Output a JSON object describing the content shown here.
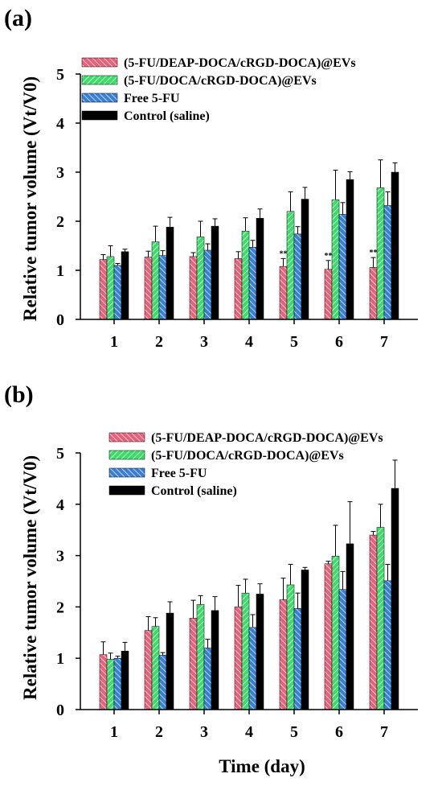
{
  "figure": {
    "xlabel": "Time (day)"
  },
  "colors": {
    "pink": "#e8607a",
    "green": "#3ddc6a",
    "blue": "#3a7fd6",
    "black": "#000000"
  },
  "chart_data": [
    {
      "panel_label": "(a)",
      "type": "bar",
      "categories": [
        "1",
        "2",
        "3",
        "4",
        "5",
        "6",
        "7"
      ],
      "ylabel": "Relative tumor volume (Vt/V0)",
      "ylim": [
        0,
        5
      ],
      "yticks": [
        "0",
        "1",
        "2",
        "3",
        "4",
        "5"
      ],
      "legend_position": "top-left",
      "series": [
        {
          "name": "(5-FU/DEAP-DOCA/cRGD-DOCA)@EVs",
          "values": [
            1.22,
            1.27,
            1.28,
            1.24,
            1.08,
            1.02,
            1.06
          ],
          "errors": [
            0.1,
            0.12,
            0.08,
            0.14,
            0.16,
            0.18,
            0.2
          ]
        },
        {
          "name": "(5-FU/DOCA/cRGD-DOCA)@EVs",
          "values": [
            1.28,
            1.58,
            1.68,
            1.8,
            2.2,
            2.44,
            2.68
          ],
          "errors": [
            0.22,
            0.32,
            0.32,
            0.27,
            0.4,
            0.6,
            0.57
          ]
        },
        {
          "name": "Free 5-FU",
          "values": [
            1.1,
            1.3,
            1.41,
            1.47,
            1.74,
            2.14,
            2.32
          ],
          "errors": [
            0.04,
            0.1,
            0.13,
            0.14,
            0.15,
            0.24,
            0.28
          ]
        },
        {
          "name": "Control (saline)",
          "values": [
            1.38,
            1.88,
            1.9,
            2.06,
            2.45,
            2.85,
            3.0
          ],
          "errors": [
            0.05,
            0.2,
            0.15,
            0.19,
            0.24,
            0.16,
            0.19
          ]
        }
      ],
      "annotations": [
        {
          "category": "5",
          "text": "**"
        },
        {
          "category": "6",
          "text": "**"
        },
        {
          "category": "7",
          "text": "**"
        }
      ]
    },
    {
      "panel_label": "(b)",
      "type": "bar",
      "categories": [
        "1",
        "2",
        "3",
        "4",
        "5",
        "6",
        "7"
      ],
      "ylabel": "Relative tumor volume (Vt/V0)",
      "ylim": [
        0,
        5
      ],
      "yticks": [
        "0",
        "1",
        "2",
        "3",
        "4",
        "5"
      ],
      "legend_position": "top-left",
      "series": [
        {
          "name": "(5-FU/DEAP-DOCA/cRGD-DOCA)@EVs",
          "values": [
            1.07,
            1.54,
            1.78,
            2.0,
            2.14,
            2.84,
            3.4
          ],
          "errors": [
            0.25,
            0.27,
            0.35,
            0.42,
            0.42,
            0.05,
            0.07
          ]
        },
        {
          "name": "(5-FU/DOCA/cRGD-DOCA)@EVs",
          "values": [
            0.98,
            1.62,
            2.05,
            2.27,
            2.43,
            2.99,
            3.55
          ],
          "errors": [
            0.12,
            0.17,
            0.17,
            0.27,
            0.4,
            0.6,
            0.45
          ]
        },
        {
          "name": "Free 5-FU",
          "values": [
            1.0,
            1.06,
            1.2,
            1.6,
            1.97,
            2.34,
            2.51
          ],
          "errors": [
            0.04,
            0.05,
            0.17,
            0.25,
            0.3,
            0.35,
            0.32
          ]
        },
        {
          "name": "Control (saline)",
          "values": [
            1.14,
            1.88,
            1.93,
            2.25,
            2.72,
            3.23,
            4.31
          ],
          "errors": [
            0.17,
            0.22,
            0.27,
            0.2,
            0.05,
            0.82,
            0.55
          ]
        }
      ],
      "annotations": []
    }
  ]
}
